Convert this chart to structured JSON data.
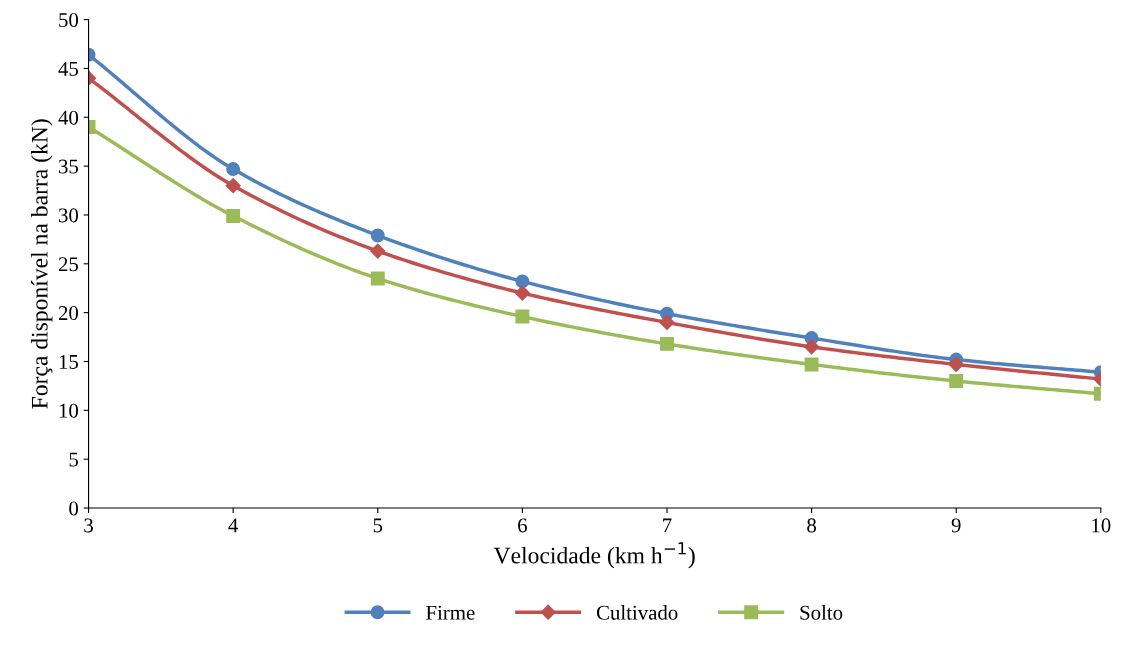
{
  "chart_data": {
    "type": "line",
    "xlabel": "Velocidade (km h$^{−1}$)",
    "ylabel": "Força disponível na barra (kN)",
    "x": [
      3,
      4,
      5,
      6,
      7,
      8,
      9,
      10
    ],
    "series": [
      {
        "name": "Firme",
        "color": "#4f81bd",
        "marker": "circle",
        "values": [
          46.4,
          34.7,
          27.9,
          23.2,
          19.9,
          17.4,
          15.2,
          13.9
        ]
      },
      {
        "name": "Cultivado",
        "color": "#c0504d",
        "marker": "diamond",
        "values": [
          44.0,
          33.0,
          26.3,
          22.0,
          19.0,
          16.5,
          14.7,
          13.2
        ]
      },
      {
        "name": "Solto",
        "color": "#9bbb59",
        "marker": "square",
        "values": [
          39.0,
          29.9,
          23.5,
          19.6,
          16.8,
          14.7,
          13.0,
          11.7
        ]
      }
    ],
    "xlim": [
      3,
      10
    ],
    "xticks": [
      3,
      4,
      5,
      6,
      7,
      8,
      9,
      10
    ],
    "ylim": [
      0,
      50
    ],
    "yticks": [
      0,
      5,
      10,
      15,
      20,
      25,
      30,
      35,
      40,
      45,
      50
    ],
    "grid": false,
    "legend": "bottom",
    "line_style": "solid"
  }
}
